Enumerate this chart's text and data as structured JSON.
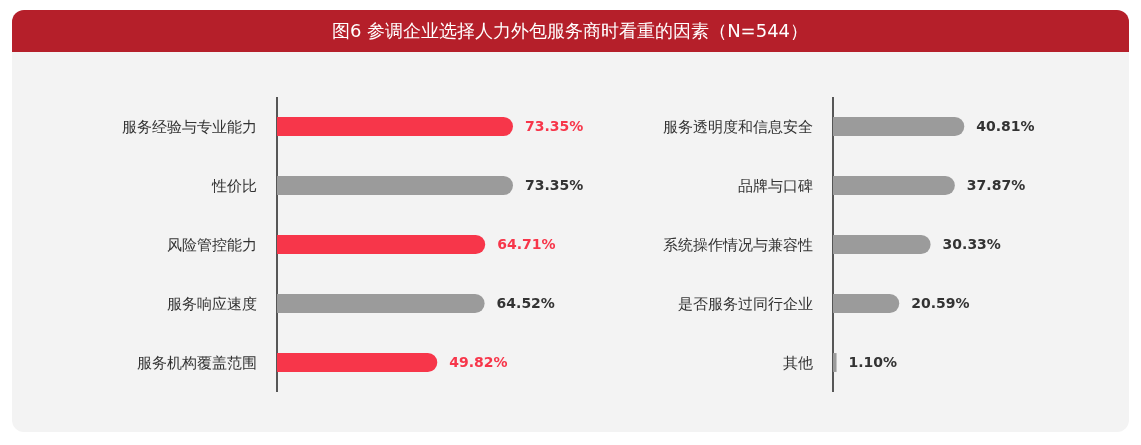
{
  "chart_data": [
    {
      "type": "bar",
      "orientation": "horizontal",
      "title": "图6 参调企业选择人力外包服务商时看重的因素（N=544）",
      "categories": [
        "服务经验与专业能力",
        "性价比",
        "风险管控能力",
        "服务响应速度",
        "服务机构覆盖范围"
      ],
      "values": [
        73.35,
        73.35,
        64.71,
        64.52,
        49.82
      ],
      "colors": [
        "#f7364a",
        "#9b9b9b",
        "#f7364a",
        "#9b9b9b",
        "#f7364a"
      ],
      "value_labels": [
        "73.35%",
        "73.35%",
        "64.71%",
        "64.52%",
        "49.82%"
      ]
    },
    {
      "type": "bar",
      "orientation": "horizontal",
      "categories": [
        "服务透明度和信息安全",
        "品牌与口碑",
        "系统操作情况与兼容性",
        "是否服务过同行企业",
        "其他"
      ],
      "values": [
        40.81,
        37.87,
        30.33,
        20.59,
        1.1
      ],
      "colors": [
        "#9b9b9b",
        "#9b9b9b",
        "#9b9b9b",
        "#9b9b9b",
        "#9b9b9b"
      ],
      "value_labels": [
        "40.81%",
        "37.87%",
        "30.33%",
        "20.59%",
        "1.10%"
      ]
    }
  ]
}
